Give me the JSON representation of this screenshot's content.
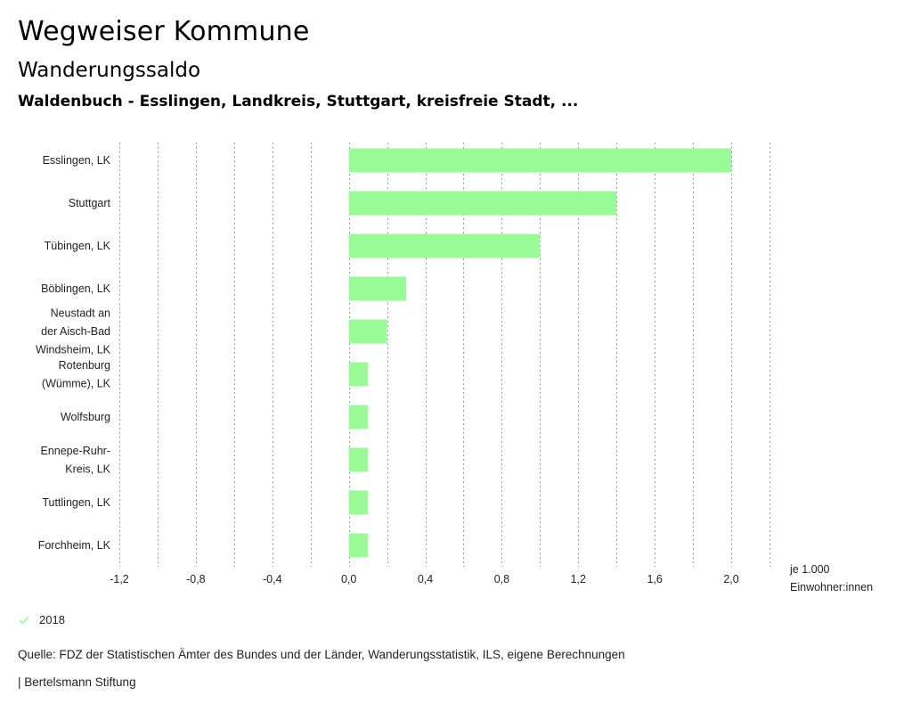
{
  "header": {
    "title": "Wegweiser Kommune",
    "subtitle": "Wanderungssaldo",
    "region": "Waldenbuch - Esslingen, Landkreis, Stuttgart, kreisfreie Stadt, ..."
  },
  "chart_data": {
    "type": "bar",
    "orientation": "horizontal",
    "categories": [
      [
        "Esslingen, LK"
      ],
      [
        "Stuttgart"
      ],
      [
        "Tübingen, LK"
      ],
      [
        "Böblingen, LK"
      ],
      [
        "Neustadt an",
        "der Aisch-Bad",
        "Windsheim, LK"
      ],
      [
        "Rotenburg",
        "(Wümme), LK"
      ],
      [
        "Wolfsburg"
      ],
      [
        "Ennepe-Ruhr-",
        "Kreis, LK"
      ],
      [
        "Tuttlingen, LK"
      ],
      [
        "Forchheim, LK"
      ]
    ],
    "series": [
      {
        "name": "2018",
        "color": "#98fb98",
        "values": [
          2.0,
          1.4,
          1.0,
          0.3,
          0.2,
          0.1,
          0.1,
          0.1,
          0.1,
          0.1
        ]
      }
    ],
    "xlim": [
      -1.2,
      2.2
    ],
    "xticks": [
      "-1,2",
      "-0,8",
      "-0,4",
      "0,0",
      "0,4",
      "0,8",
      "1,2",
      "1,6",
      "2,0"
    ],
    "xtick_values": [
      -1.2,
      -0.8,
      -0.4,
      0.0,
      0.4,
      0.8,
      1.2,
      1.6,
      2.0
    ],
    "grid_values": [
      -1.2,
      -1.0,
      -0.8,
      -0.6,
      -0.4,
      -0.2,
      0.0,
      0.2,
      0.4,
      0.6,
      0.8,
      1.0,
      1.2,
      1.4,
      1.6,
      1.8,
      2.0,
      2.2
    ],
    "unit_label": [
      "je 1.000",
      "Einwohner:innen"
    ],
    "grid": true
  },
  "legend": {
    "label": "2018",
    "icon": "check-icon",
    "color": "#98fb98"
  },
  "footer": {
    "source": "Quelle: FDZ der Statistischen Ämter des Bundes und der Länder, Wanderungsstatistik, ILS, eigene Berechnungen",
    "credit": "| Bertelsmann Stiftung"
  }
}
